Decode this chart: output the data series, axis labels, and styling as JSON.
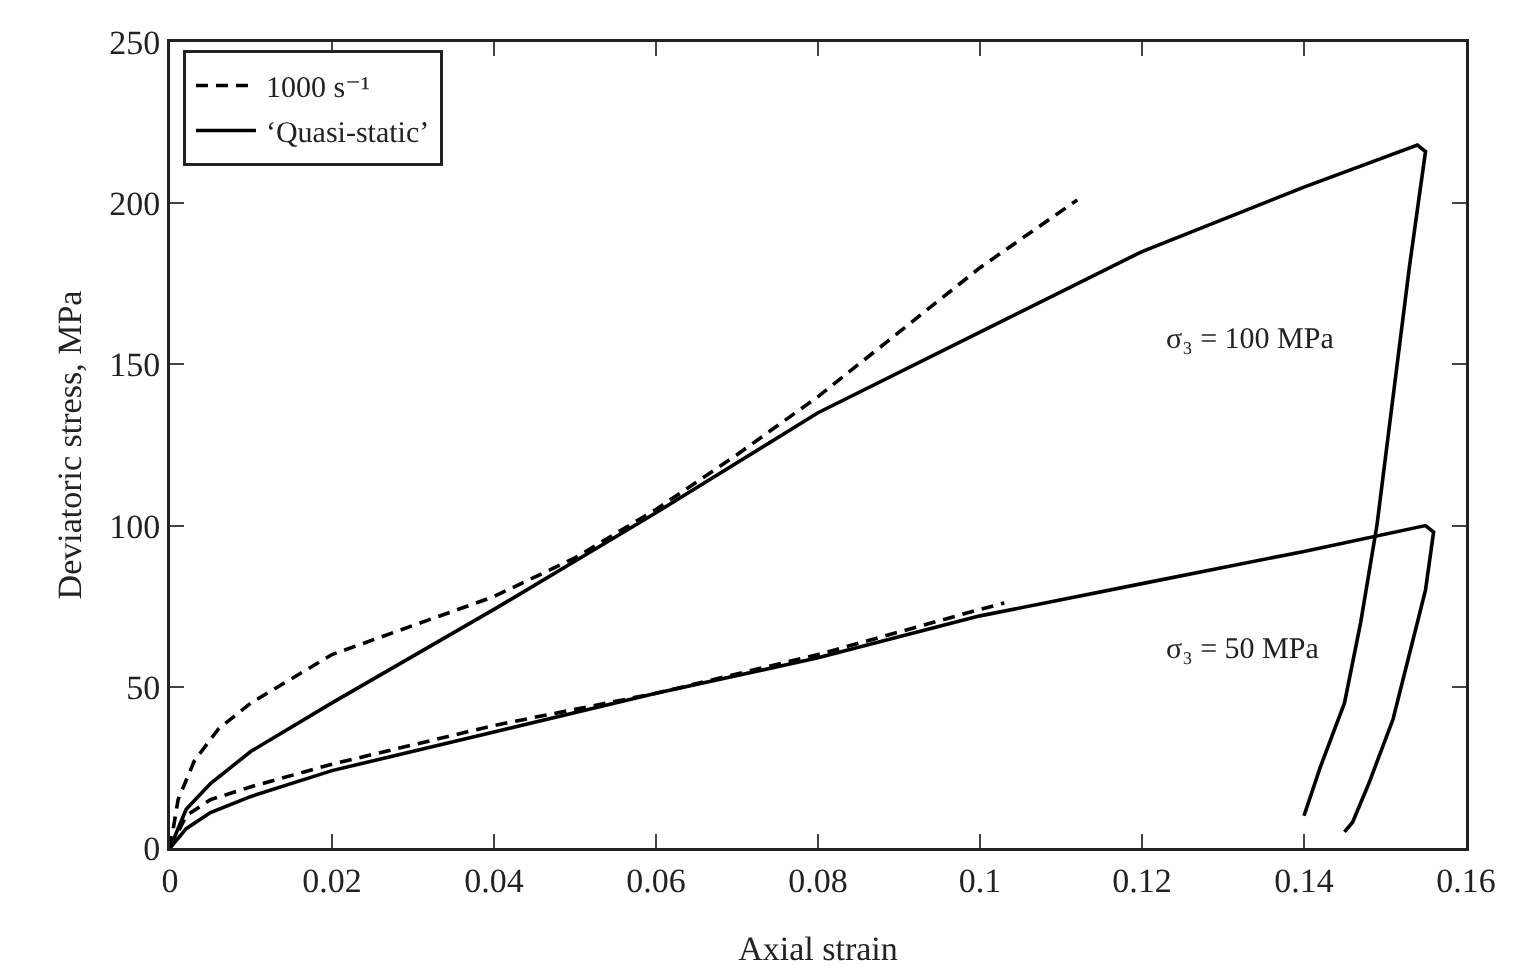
{
  "chart_data": {
    "type": "line",
    "xlabel": "Axial strain",
    "ylabel": "Deviatoric stress, MPa",
    "xlim": [
      0,
      0.16
    ],
    "xticks": [
      0,
      0.02,
      0.04,
      0.06,
      0.08,
      {
        "value": 0.1,
        "label": "0.1"
      },
      0.12,
      0.14,
      0.16
    ],
    "ylim": [
      0,
      250
    ],
    "yticks": [
      0,
      50,
      100,
      150,
      200,
      250
    ],
    "grid": false,
    "legend": "top left",
    "marker": "none",
    "series": [
      {
        "name": "1000 s⁻¹",
        "color": "#000000",
        "line_style": "dashed",
        "x": [
          0,
          0.001,
          0.003,
          0.006,
          0.01,
          0.02,
          0.03,
          0.04,
          0.05,
          0.06,
          0.07,
          0.08,
          0.09,
          0.1,
          0.112
        ],
        "values": [
          0,
          15,
          27,
          37,
          45,
          60,
          69,
          78,
          90,
          105,
          122,
          140,
          160,
          180,
          201
        ]
      },
      {
        "name": "‘Quasi-static’",
        "color": "#000000",
        "line_style": "solid",
        "x": [
          0,
          0.002,
          0.005,
          0.01,
          0.02,
          0.04,
          0.06,
          0.08,
          0.1,
          0.12,
          0.14,
          0.154,
          0.155,
          0.153,
          0.151,
          0.149,
          0.147,
          0.145,
          0.142,
          0.14
        ],
        "values": [
          0,
          12,
          20,
          30,
          45,
          74,
          104,
          135,
          160,
          185,
          205,
          218,
          216,
          180,
          140,
          100,
          70,
          45,
          25,
          10
        ]
      },
      {
        "color": "#000000",
        "line_style": "dashed",
        "x": [
          0,
          0.002,
          0.005,
          0.01,
          0.02,
          0.04,
          0.06,
          0.08,
          0.1,
          0.103
        ],
        "values": [
          0,
          10,
          15,
          19,
          26,
          38,
          48,
          60,
          74,
          76
        ]
      },
      {
        "color": "#000000",
        "line_style": "solid",
        "x": [
          0,
          0.002,
          0.005,
          0.01,
          0.02,
          0.04,
          0.06,
          0.08,
          0.1,
          0.12,
          0.14,
          0.155,
          0.156,
          0.155,
          0.153,
          0.151,
          0.148,
          0.146,
          0.145
        ],
        "values": [
          0,
          6,
          11,
          16,
          24,
          36,
          48,
          59,
          72,
          82,
          92,
          100,
          98,
          80,
          60,
          40,
          20,
          8,
          5
        ]
      }
    ],
    "annotations": [
      "σ₃ = 100 MPa",
      "σ₃ = 50 MPa"
    ]
  }
}
